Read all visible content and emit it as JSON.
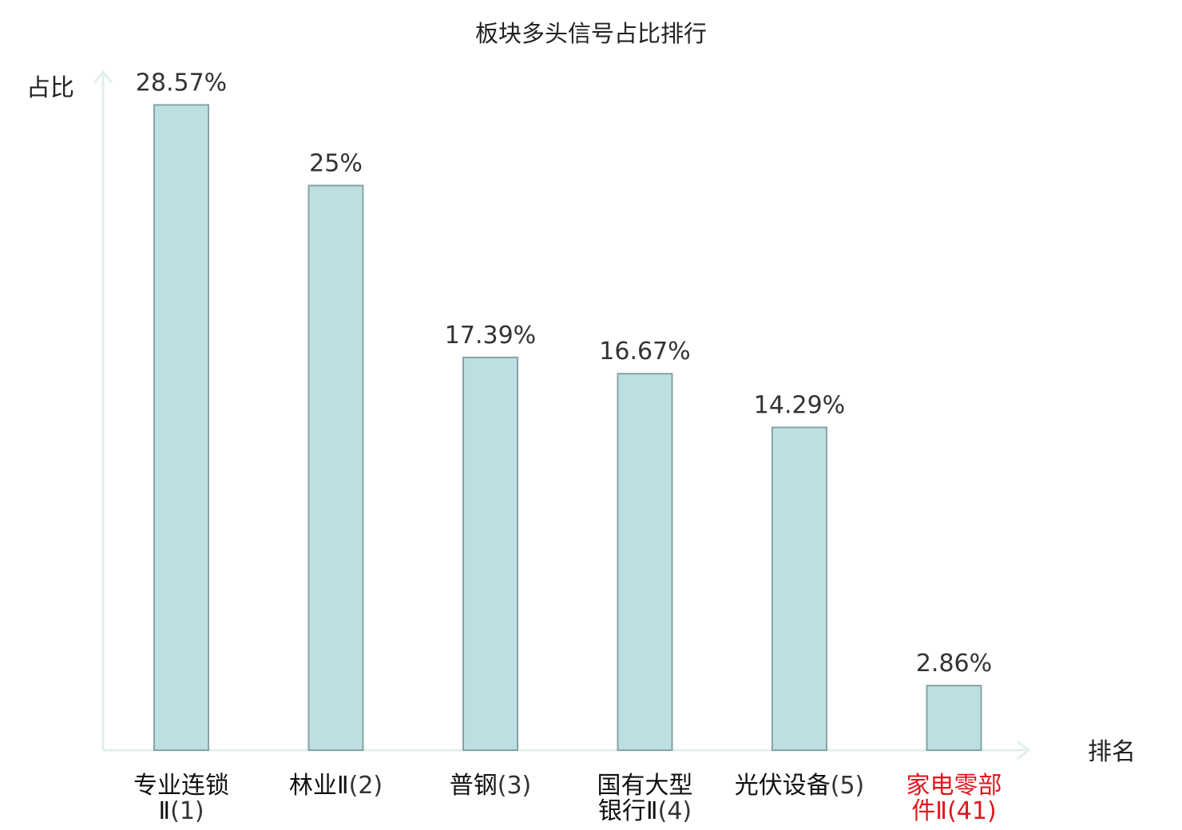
{
  "chart_data": {
    "type": "bar",
    "title": "板块多头信号占比排行",
    "ylabel": "占比",
    "xlabel": "排名",
    "ylim": [
      0,
      30
    ],
    "grid": false,
    "categories": [
      {
        "name_lines": [
          "专业连锁",
          "Ⅱ"
        ],
        "rank": "(1)",
        "highlight": false
      },
      {
        "name_lines": [
          "林业Ⅱ"
        ],
        "rank": "(2)",
        "highlight": false
      },
      {
        "name_lines": [
          "普钢"
        ],
        "rank": "(3)",
        "highlight": false
      },
      {
        "name_lines": [
          "国有大型",
          "银行Ⅱ"
        ],
        "rank": "(4)",
        "highlight": false
      },
      {
        "name_lines": [
          "光伏设备"
        ],
        "rank": "(5)",
        "highlight": false
      },
      {
        "name_lines": [
          "家电零部",
          "件Ⅱ"
        ],
        "rank": "(41)",
        "highlight": true
      }
    ],
    "values": [
      28.57,
      25,
      17.39,
      16.67,
      14.29,
      2.86
    ],
    "value_labels": [
      "28.57%",
      "25%",
      "17.39%",
      "16.67%",
      "14.29%",
      "2.86%"
    ]
  },
  "colors": {
    "bar_fill": "#bce0e2",
    "bar_stroke": "#86a3a6",
    "axis": "#dff1ee",
    "text": "#222222",
    "highlight": "#e0161b"
  }
}
